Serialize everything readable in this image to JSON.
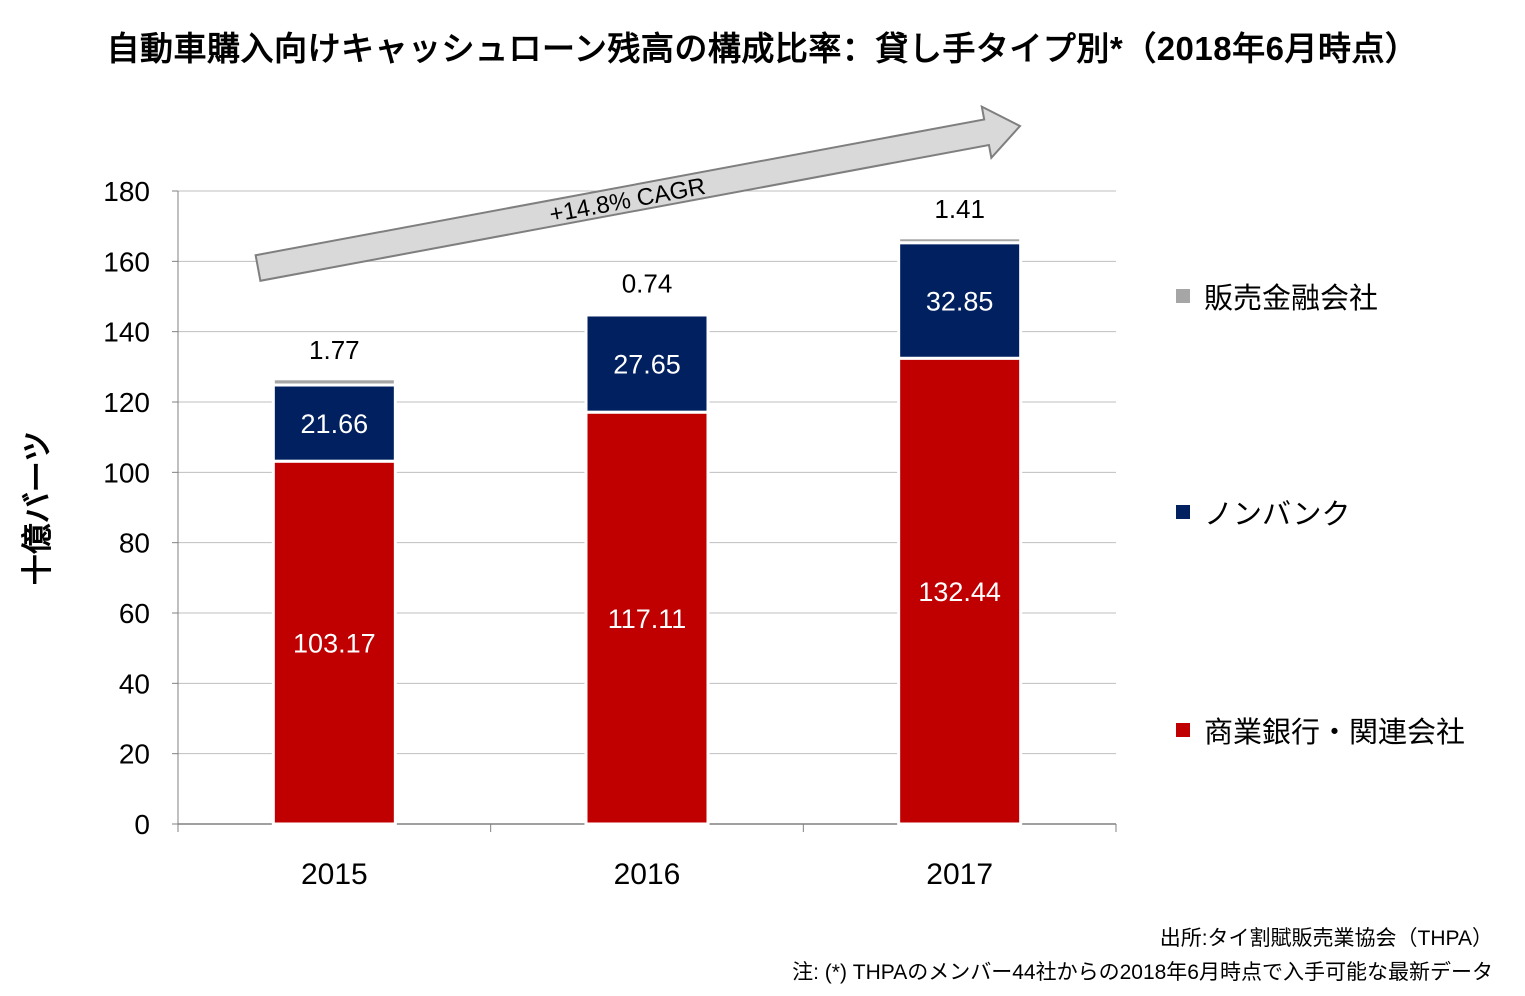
{
  "title": "自動車購入向けキャッシュローン残高の構成比率：貸し手タイプ別*（2018年6月時点）",
  "source": "出所:タイ割賦販売業協会（THPA）",
  "note": "注: (*) THPAのメンバー44社からの2018年6月時点で入手可能な最新データ",
  "colors": {
    "bank": "#C00000",
    "nonbank": "#002060",
    "finance": "#A6A6A6",
    "grid": "#BFBFBF",
    "arrow_fill": "#D9D9D9",
    "arrow_stroke": "#7F7F7F"
  },
  "chart_data": {
    "type": "bar",
    "stacked": true,
    "categories": [
      "2015",
      "2016",
      "2017"
    ],
    "series": [
      {
        "name": "商業銀行・関連会社",
        "color_key": "bank",
        "values": [
          103.17,
          117.11,
          132.44
        ],
        "labels": [
          "103.17",
          "117.11",
          "132.44"
        ]
      },
      {
        "name": "ノンバンク",
        "color_key": "nonbank",
        "values": [
          21.66,
          27.65,
          32.85
        ],
        "labels": [
          "21.66",
          "27.65",
          "32.85"
        ]
      },
      {
        "name": "販売金融会社",
        "color_key": "finance",
        "values": [
          1.77,
          0.74,
          1.41
        ],
        "labels": [
          "1.77",
          "0.74",
          "1.41"
        ]
      }
    ],
    "ylabel": "十億バーツ",
    "ylim": [
      0,
      180
    ],
    "yticks": [
      0,
      20,
      40,
      60,
      80,
      100,
      120,
      140,
      160,
      180
    ],
    "grid": true,
    "legend_position": "right",
    "legend_order": [
      "販売金融会社",
      "ノンバンク",
      "商業銀行・関連会社"
    ],
    "annotation": "+14.8% CAGR"
  }
}
